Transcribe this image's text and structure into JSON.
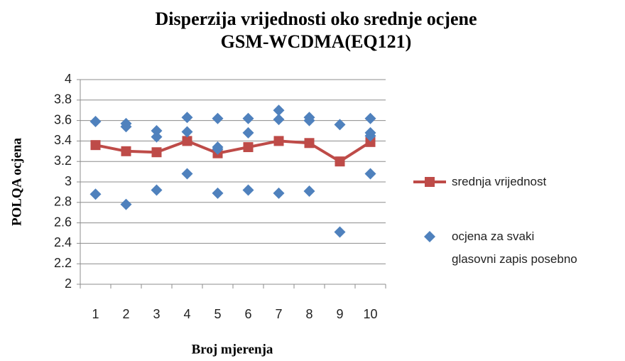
{
  "chart_data": {
    "type": "line",
    "title": "Disperzija vrijednosti oko srednje ocjene",
    "subtitle": "GSM-WCDMA(EQ121)",
    "x_label": "Broj mjerenja",
    "y_label": "POLQA ocjena",
    "categories": [
      1,
      2,
      3,
      4,
      5,
      6,
      7,
      8,
      9,
      10
    ],
    "ylim": [
      2,
      4
    ],
    "yticks": [
      2,
      2.2,
      2.4,
      2.6,
      2.8,
      3,
      3.2,
      3.4,
      3.6,
      3.8,
      4
    ],
    "grid": true,
    "legend": "right",
    "series": [
      {
        "name": "srednja vrijednost",
        "color": "#be4b48",
        "type": "line",
        "values": [
          3.36,
          3.3,
          3.29,
          3.4,
          3.28,
          3.34,
          3.4,
          3.38,
          3.2,
          3.39
        ]
      },
      {
        "name": "ocjena za svaki glasovni zapis posebno",
        "color": "#4f81bd",
        "type": "scatter",
        "x": [
          1,
          1,
          2,
          2,
          2,
          3,
          3,
          3,
          4,
          4,
          4,
          5,
          5,
          5,
          5,
          6,
          6,
          6,
          7,
          7,
          7,
          8,
          8,
          8,
          9,
          9,
          10,
          10,
          10,
          10
        ],
        "values": [
          3.59,
          2.88,
          3.57,
          3.54,
          2.78,
          3.5,
          3.44,
          2.92,
          3.63,
          3.49,
          3.08,
          3.62,
          3.34,
          3.32,
          2.89,
          3.62,
          3.48,
          2.92,
          3.7,
          3.61,
          2.89,
          3.63,
          3.6,
          2.91,
          3.56,
          2.51,
          3.62,
          3.48,
          3.45,
          3.08
        ]
      }
    ]
  }
}
